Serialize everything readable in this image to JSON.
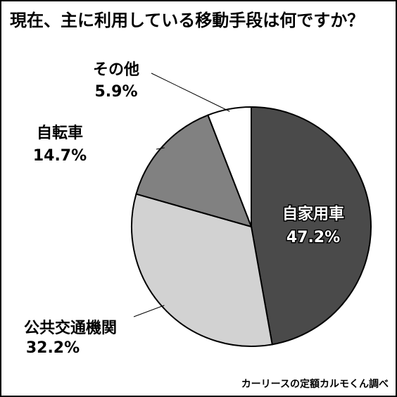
{
  "chart_data": {
    "type": "pie",
    "title": "現在、主に利用している移動手段は何ですか？",
    "source": "カーリースの定額カルモくん調べ",
    "categories": [
      "自家用車",
      "公共交通機関",
      "自転車",
      "その他"
    ],
    "values": [
      47.2,
      32.2,
      14.7,
      5.9
    ],
    "value_labels": [
      "47.2%",
      "32.2%",
      "14.7%",
      "5.9%"
    ],
    "colors": [
      "#4a4a4a",
      "#d2d2d2",
      "#818181",
      "#ffffff"
    ]
  }
}
